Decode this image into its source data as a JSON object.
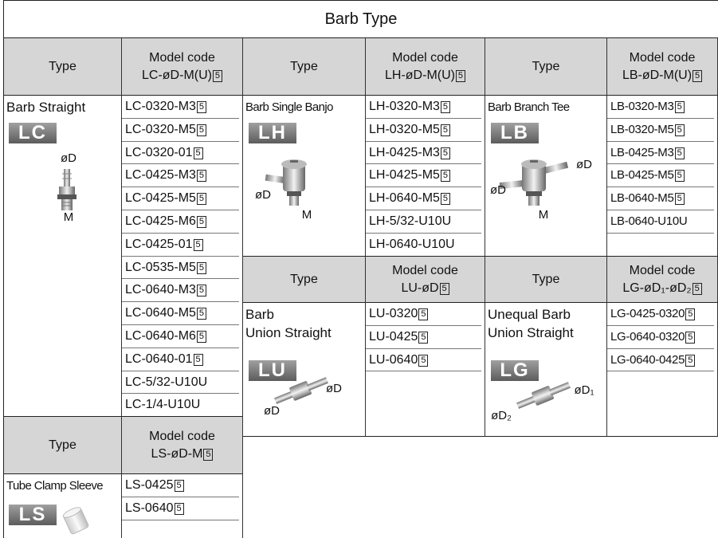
{
  "title": "Barb Type",
  "sections": [
    {
      "type_header": "Type",
      "code_header": "Model code",
      "code_pattern": "LC-øD-M(U)",
      "pattern_box": "5",
      "name": [
        "Barb Straight"
      ],
      "badge": "LC",
      "labels": [
        "øD",
        "M"
      ],
      "codes": [
        {
          "code": "LC-0320-M3",
          "box": "5"
        },
        {
          "code": "LC-0320-M5",
          "box": "5"
        },
        {
          "code": "LC-0320-01",
          "box": "5"
        },
        {
          "code": "LC-0425-M3",
          "box": "5"
        },
        {
          "code": "LC-0425-M5",
          "box": "5"
        },
        {
          "code": "LC-0425-M6",
          "box": "5"
        },
        {
          "code": "LC-0425-01",
          "box": "5"
        },
        {
          "code": "LC-0535-M5",
          "box": "5"
        },
        {
          "code": "LC-0640-M3",
          "box": "5"
        },
        {
          "code": "LC-0640-M5",
          "box": "5"
        },
        {
          "code": "LC-0640-M6",
          "box": "5"
        },
        {
          "code": "LC-0640-01",
          "box": "5"
        },
        {
          "code": "LC-5/32-U10U"
        },
        {
          "code": "LC-1/4-U10U"
        }
      ]
    },
    {
      "type_header": "Type",
      "code_header": "Model code",
      "code_pattern": "LH-øD-M(U)",
      "pattern_box": "5",
      "name": [
        "Barb Single Banjo"
      ],
      "badge": "LH",
      "labels": [
        "øD",
        "M"
      ],
      "codes": [
        {
          "code": "LH-0320-M3",
          "box": "5"
        },
        {
          "code": "LH-0320-M5",
          "box": "5"
        },
        {
          "code": "LH-0425-M3",
          "box": "5"
        },
        {
          "code": "LH-0425-M5",
          "box": "5"
        },
        {
          "code": "LH-0640-M5",
          "box": "5"
        },
        {
          "code": "LH-5/32-U10U"
        },
        {
          "code": "LH-0640-U10U"
        }
      ]
    },
    {
      "type_header": "Type",
      "code_header": "Model code",
      "code_pattern": "LB-øD-M(U)",
      "pattern_box": "5",
      "name": [
        "Barb Branch Tee"
      ],
      "badge": "LB",
      "labels": [
        "øD",
        "øD",
        "M"
      ],
      "codes": [
        {
          "code": "LB-0320-M3",
          "box": "5"
        },
        {
          "code": "LB-0320-M5",
          "box": "5"
        },
        {
          "code": "LB-0425-M3",
          "box": "5"
        },
        {
          "code": "LB-0425-M5",
          "box": "5"
        },
        {
          "code": "LB-0640-M5",
          "box": "5"
        },
        {
          "code": "LB-0640-U10U"
        }
      ]
    },
    {
      "type_header": "Type",
      "code_header": "Model code",
      "code_pattern": "LU-øD",
      "pattern_box": "5",
      "name": [
        "Barb",
        "Union Straight"
      ],
      "badge": "LU",
      "labels": [
        "øD",
        "øD"
      ],
      "codes": [
        {
          "code": "LU-0320",
          "box": "5"
        },
        {
          "code": "LU-0425",
          "box": "5"
        },
        {
          "code": "LU-0640",
          "box": "5"
        }
      ]
    },
    {
      "type_header": "Type",
      "code_header": "Model code",
      "code_pattern": "LG-øD₁-øD₂",
      "pattern_box": "5",
      "name": [
        "Unequal Barb",
        "Union Straight"
      ],
      "badge": "LG",
      "labels": [
        "øD₁",
        "øD₂"
      ],
      "codes": [
        {
          "code": "LG-0425-0320",
          "box": "5"
        },
        {
          "code": "LG-0640-0320",
          "box": "5"
        },
        {
          "code": "LG-0640-0425",
          "box": "5"
        }
      ]
    },
    {
      "type_header": "Type",
      "code_header": "Model code",
      "code_pattern": "LS-øD-M",
      "pattern_box": "5",
      "name": [
        "Tube Clamp Sleeve"
      ],
      "badge": "LS",
      "labels": [],
      "codes": [
        {
          "code": "LS-0425",
          "box": "5"
        },
        {
          "code": "LS-0640",
          "box": "5"
        }
      ]
    }
  ]
}
